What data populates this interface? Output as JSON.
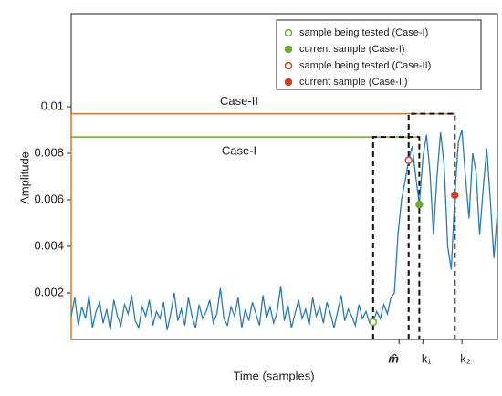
{
  "chart_data": {
    "type": "line",
    "xlabel": "Time (samples)",
    "ylabel": "Amplitude",
    "xlim": [
      0,
      120
    ],
    "ylim": [
      0,
      0.014
    ],
    "yticks": [
      0.002,
      0.004,
      0.006,
      0.008,
      0.01
    ],
    "xticks": [
      {
        "value": 92.3,
        "label": "m̂"
      },
      {
        "value": 99,
        "label": "k₁"
      },
      {
        "value": 110,
        "label": "k₂"
      }
    ],
    "legend": "upper right",
    "series": [
      {
        "color": "#2a7ab9",
        "x": [
          0,
          1,
          2,
          3,
          4,
          5,
          6,
          7,
          8,
          9,
          10,
          11,
          12,
          13,
          14,
          15,
          16,
          17,
          18,
          19,
          20,
          21,
          22,
          23,
          24,
          25,
          26,
          27,
          28,
          29,
          30,
          31,
          32,
          33,
          34,
          35,
          36,
          37,
          38,
          39,
          40,
          41,
          42,
          43,
          44,
          45,
          46,
          47,
          48,
          49,
          50,
          51,
          52,
          53,
          54,
          55,
          56,
          57,
          58,
          59,
          60,
          61,
          62,
          63,
          64,
          65,
          66,
          67,
          68,
          69,
          70,
          71,
          72,
          73,
          74,
          75,
          76,
          77,
          78,
          79,
          80,
          81,
          82,
          83,
          84,
          85,
          86,
          87,
          88,
          89,
          90,
          91,
          92,
          93,
          94,
          95,
          96,
          97,
          98,
          99,
          100,
          101,
          102,
          103,
          104,
          105,
          106,
          107,
          108,
          109,
          110,
          111,
          112,
          113,
          114,
          115,
          116,
          117,
          118,
          119,
          120
        ],
        "values": [
          0.001,
          0.0018,
          0.0006,
          0.0014,
          0.0009,
          0.0019,
          0.0005,
          0.0012,
          0.0016,
          0.0007,
          0.0013,
          0.0004,
          0.0017,
          0.001,
          0.0006,
          0.0015,
          0.0011,
          0.0019,
          0.0008,
          0.0005,
          0.0014,
          0.001,
          0.0017,
          0.0006,
          0.0012,
          0.0009,
          0.0016,
          0.0004,
          0.0011,
          0.002,
          0.0008,
          0.0013,
          0.0006,
          0.0018,
          0.001,
          0.0005,
          0.0015,
          0.0009,
          0.0012,
          0.0017,
          0.0007,
          0.0011,
          0.0022,
          0.0009,
          0.0006,
          0.0014,
          0.001,
          0.0018,
          0.0005,
          0.0013,
          0.0008,
          0.0016,
          0.0011,
          0.0006,
          0.0019,
          0.0009,
          0.0014,
          0.0007,
          0.0012,
          0.0023,
          0.0008,
          0.0015,
          0.0005,
          0.0011,
          0.0017,
          0.0009,
          0.0013,
          0.0006,
          0.0018,
          0.001,
          0.0014,
          0.0007,
          0.0016,
          0.0011,
          0.0005,
          0.0012,
          0.0019,
          0.0008,
          0.0013,
          0.001,
          0.0006,
          0.0015,
          0.0009,
          0.0012,
          0.0007,
          0.00075,
          0.0012,
          0.0009,
          0.0015,
          0.0011,
          0.0018,
          0.002,
          0.0045,
          0.006,
          0.0068,
          0.0077,
          0.0083,
          0.007,
          0.0058,
          0.0078,
          0.0088,
          0.0072,
          0.0045,
          0.007,
          0.0089,
          0.0075,
          0.004,
          0.003,
          0.0062,
          0.0085,
          0.009,
          0.007,
          0.0052,
          0.008,
          0.0072,
          0.0045,
          0.0065,
          0.0082,
          0.006,
          0.0035,
          0.0055
        ]
      }
    ],
    "thresholds": [
      {
        "name": "Case-I",
        "value": 0.0087,
        "color": "#6aab2e",
        "window": [
          85,
          98
        ]
      },
      {
        "name": "Case-II",
        "value": 0.0097,
        "color": "#d9772b",
        "window": [
          95,
          108
        ]
      }
    ],
    "markers": [
      {
        "name": "sample being tested (Case-I)",
        "color": "#6aab2e",
        "filled": false,
        "x": 85,
        "y": 0.00075
      },
      {
        "name": "current sample (Case-I)",
        "color": "#6aab2e",
        "filled": true,
        "x": 98,
        "y": 0.0058
      },
      {
        "name": "sample being tested (Case-II)",
        "color": "#c8452a",
        "filled": false,
        "x": 95,
        "y": 0.0077
      },
      {
        "name": "current sample (Case-II)",
        "color": "#c8452a",
        "filled": true,
        "x": 108,
        "y": 0.0062
      }
    ]
  }
}
